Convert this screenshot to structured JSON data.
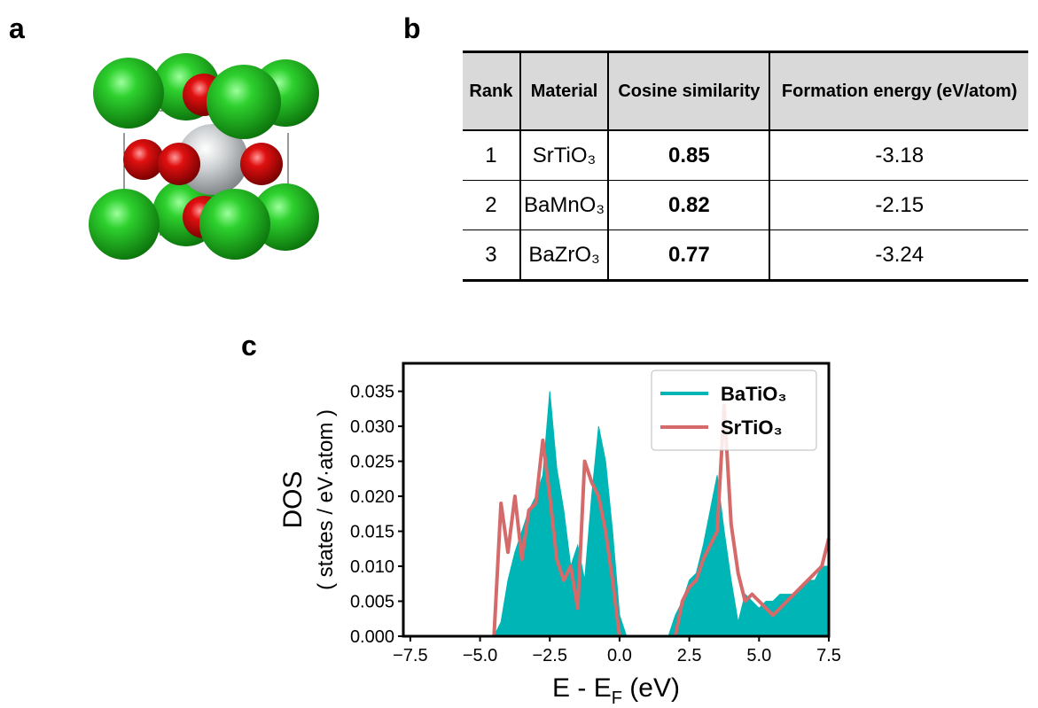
{
  "panel_labels": {
    "a": "a",
    "b": "b",
    "c": "c"
  },
  "table": {
    "headers": [
      "Rank",
      "Material",
      "Cosine similarity",
      "Formation energy (eV/atom)"
    ],
    "rows": [
      [
        1,
        "SrTiO₃",
        0.85,
        -3.18
      ],
      [
        2,
        "BaMnO₃",
        0.82,
        -2.15
      ],
      [
        3,
        "BaZrO₃",
        0.77,
        -3.24
      ]
    ]
  },
  "chart_data": {
    "type": "area-line",
    "ylabel": [
      "DOS",
      "( states / eV·atom )"
    ],
    "xlabel": [
      "E - E",
      "F",
      " (eV)"
    ],
    "xlim": [
      -7.75,
      7.5
    ],
    "ylim": [
      0,
      0.039
    ],
    "xticks": [
      {
        "value": -7.5,
        "label": "−7.5"
      },
      {
        "value": -5,
        "label": "−5.0"
      },
      {
        "value": -2.5,
        "label": "−2.5"
      },
      {
        "value": 0,
        "label": "0.0"
      },
      2.5,
      {
        "value": 5,
        "label": "5.0"
      },
      7.5
    ],
    "yticks": [
      {
        "value": 0,
        "label": "0.000"
      },
      0.005,
      {
        "value": 0.01,
        "label": "0.010"
      },
      0.015,
      {
        "value": 0.02,
        "label": "0.020"
      },
      0.025,
      {
        "value": 0.03,
        "label": "0.030"
      },
      0.035
    ],
    "legend": "upper right",
    "x": [
      -7.5,
      -7.25,
      -7,
      -6.75,
      -6.5,
      -6.25,
      -6,
      -5.75,
      -5.5,
      -5.25,
      -5,
      -4.75,
      -4.5,
      -4.25,
      -4,
      -3.75,
      -3.5,
      -3.25,
      -3,
      -2.75,
      -2.5,
      -2.25,
      -2,
      -1.75,
      -1.5,
      -1.25,
      -1,
      -0.75,
      -0.5,
      -0.25,
      0,
      0.25,
      0.5,
      0.75,
      1,
      1.25,
      1.5,
      1.75,
      2,
      2.25,
      2.5,
      2.75,
      3,
      3.25,
      3.5,
      3.75,
      4,
      4.25,
      4.5,
      4.75,
      5,
      5.25,
      5.5,
      5.75,
      6,
      6.25,
      6.5,
      6.75,
      7,
      7.25,
      7.5
    ],
    "series": [
      {
        "name": "BaTiO₃",
        "color": "#00b5b5",
        "style": "area",
        "values": [
          0,
          0,
          0,
          0,
          0,
          0,
          0,
          0,
          0,
          0,
          0,
          0,
          0,
          0.002,
          0.008,
          0.012,
          0.015,
          0.018,
          0.02,
          0.023,
          0.035,
          0.024,
          0.018,
          0.01,
          0.013,
          0.008,
          0.02,
          0.03,
          0.025,
          0.015,
          0.003,
          0,
          0,
          0,
          0,
          0,
          0,
          0,
          0.003,
          0.005,
          0.008,
          0.009,
          0.013,
          0.018,
          0.023,
          0.015,
          0.008,
          0.002,
          0.006,
          0.005,
          0.004,
          0.005,
          0.005,
          0.006,
          0.006,
          0.006,
          0.007,
          0.008,
          0.008,
          0.01,
          0.01
        ]
      },
      {
        "name": "SrTiO₃",
        "color": "#d46a6a",
        "style": "line",
        "values": [
          null,
          null,
          null,
          null,
          null,
          null,
          null,
          null,
          null,
          null,
          null,
          null,
          0,
          0.019,
          0.012,
          0.02,
          0.011,
          0.018,
          0.019,
          0.028,
          0.02,
          0.011,
          0.008,
          0.01,
          0.004,
          0.025,
          0.022,
          0.02,
          0.015,
          0.008,
          0,
          null,
          null,
          null,
          null,
          null,
          null,
          null,
          0,
          0.005,
          0.007,
          0.008,
          0.011,
          0.013,
          0.015,
          0.033,
          0.016,
          0.009,
          0.005,
          0.006,
          0.005,
          0.004,
          0.003,
          0.004,
          0.005,
          0.006,
          0.007,
          0.008,
          0.009,
          0.01,
          0.014
        ]
      }
    ]
  }
}
